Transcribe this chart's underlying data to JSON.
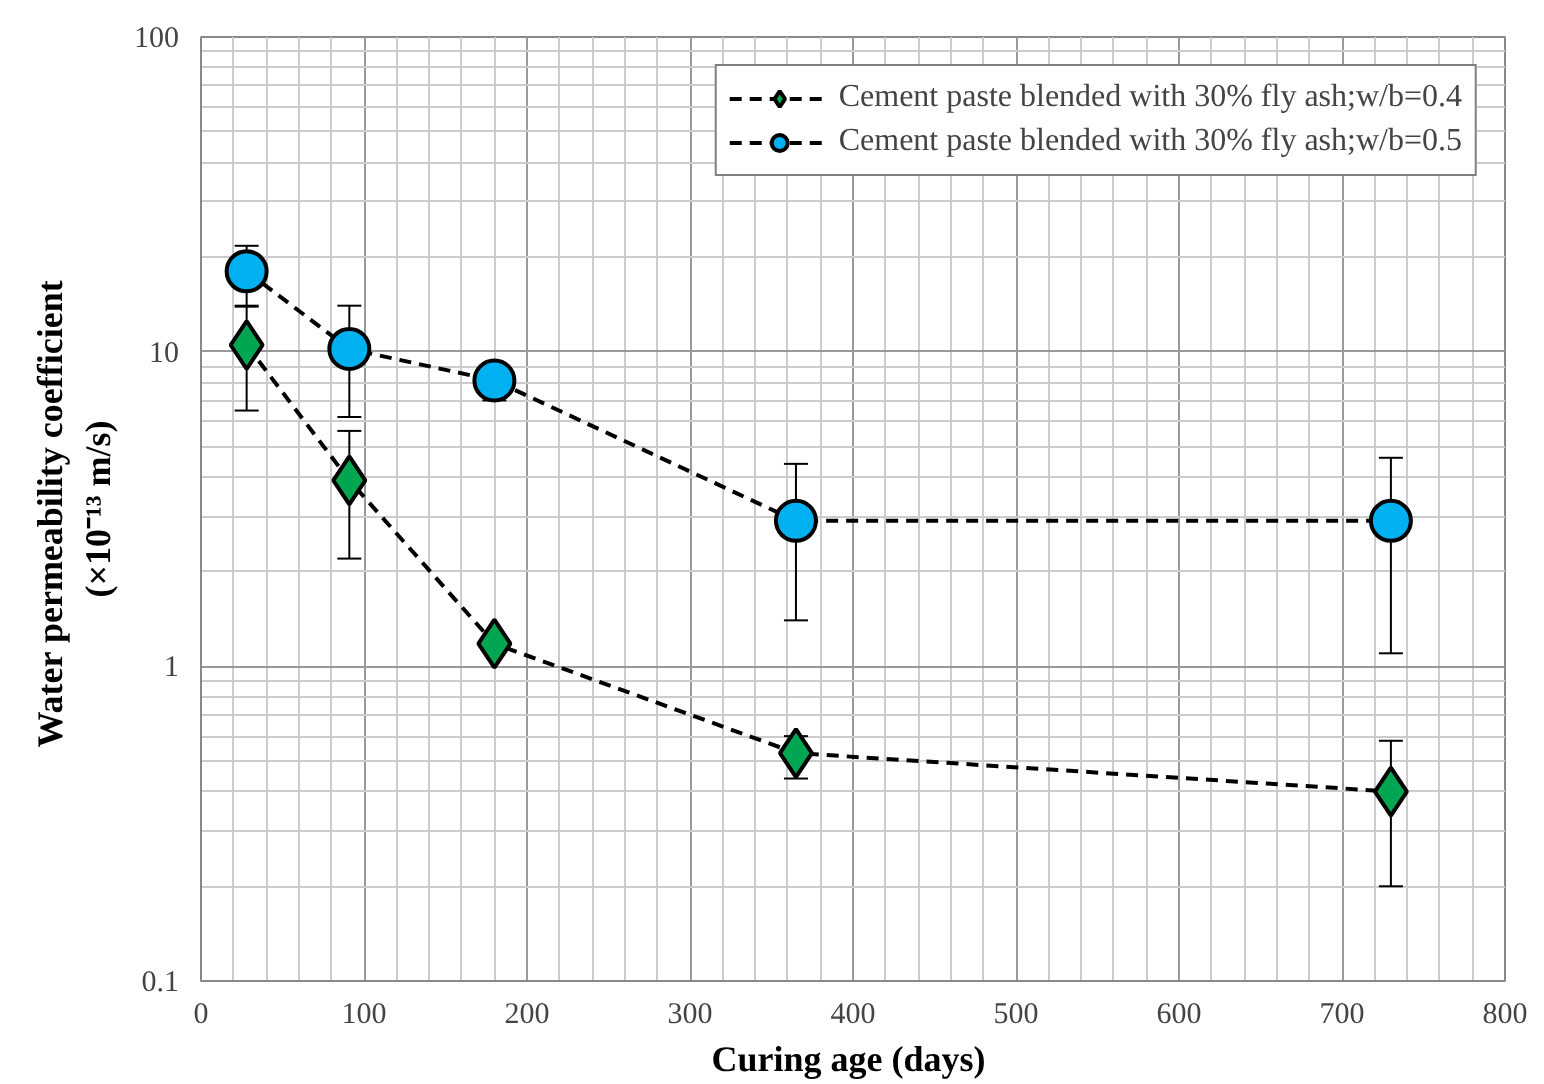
{
  "chart_data": {
    "type": "line",
    "xlabel": "Curing  age (days)",
    "ylabel": "Water permeability  coefficient\n(×10⁻¹³ m/s)",
    "x": [
      28,
      91,
      180,
      365,
      730
    ],
    "xlim": [
      0,
      800
    ],
    "xticks": [
      0,
      100,
      200,
      300,
      400,
      500,
      600,
      700,
      800
    ],
    "ylim": [
      0.1,
      100
    ],
    "yticks": [
      0.1,
      1,
      10,
      100
    ],
    "log": "y",
    "grid": true,
    "legend": "top right",
    "line_style": "dashed",
    "series": [
      {
        "name": "Cement paste blended with 30% fly ash;w/b=0.4",
        "color": "#00a651",
        "marker": "diamond",
        "values": [
          10.5,
          3.9,
          1.18,
          0.53,
          0.4
        ],
        "errors": [
          [
            6.5,
            14
          ],
          [
            2.2,
            5.6
          ],
          null,
          [
            0.44,
            0.6
          ],
          [
            0.2,
            0.58
          ]
        ]
      },
      {
        "name": "Cement paste blended with 30% fly ash;w/b=0.5",
        "color": "#00b0f0",
        "marker": "circle",
        "values": [
          18,
          10.2,
          8.1,
          2.9,
          2.9
        ],
        "errors": [
          [
            13.9,
            21.7
          ],
          [
            6.2,
            14
          ],
          [
            7.0,
            9.0
          ],
          [
            1.4,
            4.4
          ],
          [
            1.1,
            4.6
          ]
        ]
      }
    ]
  }
}
